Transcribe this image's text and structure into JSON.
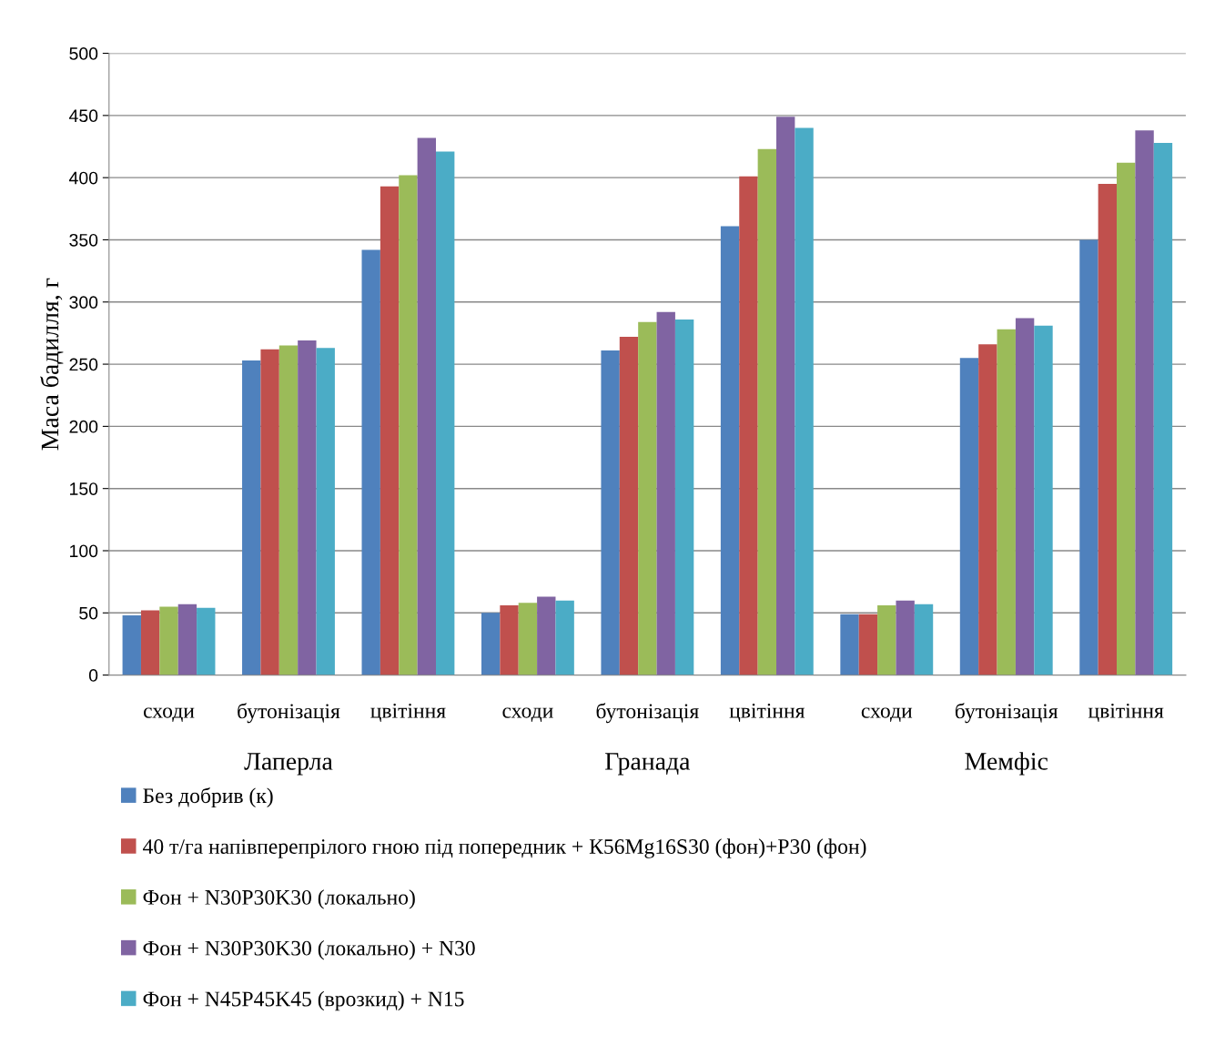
{
  "chart_data": {
    "type": "bar",
    "ylabel": "Маса бадилля, г",
    "categories": [
      "сходи",
      "бутонізація",
      "цвітіння",
      "сходи",
      "бутонізація",
      "цвітіння",
      "сходи",
      "бутонізація",
      "цвітіння"
    ],
    "annotations": [
      "Лаперла",
      "Гранада",
      "Мемфіс"
    ],
    "series": [
      {
        "name": "Без добрив (к)",
        "color": "#4f81bd",
        "values": [
          48,
          253,
          342,
          50,
          261,
          361,
          49,
          255,
          350
        ]
      },
      {
        "name": "40 т/га напівперепрілого гною під попередник + К56Mg16S30 (фон)+Р30 (фон)",
        "color": "#c0504d",
        "values": [
          52,
          262,
          393,
          56,
          272,
          401,
          49,
          266,
          395
        ]
      },
      {
        "name": "Фон + N30P30K30 (локально)",
        "color": "#9bbb59",
        "values": [
          55,
          265,
          402,
          58,
          284,
          423,
          56,
          278,
          412
        ]
      },
      {
        "name": "Фон + N30P30K30 (локально) + N30",
        "color": "#8064a2",
        "values": [
          57,
          269,
          432,
          63,
          292,
          449,
          60,
          287,
          438
        ]
      },
      {
        "name": "Фон + N45P45K45 (врозкид) + N15",
        "color": "#4bacc6",
        "values": [
          54,
          263,
          421,
          60,
          286,
          440,
          57,
          281,
          428
        ]
      }
    ],
    "ylim": [
      0,
      500
    ],
    "yticks": [
      0,
      50,
      100,
      150,
      200,
      250,
      300,
      350,
      400,
      450,
      500
    ],
    "grid": "y",
    "legend": "bottom"
  }
}
